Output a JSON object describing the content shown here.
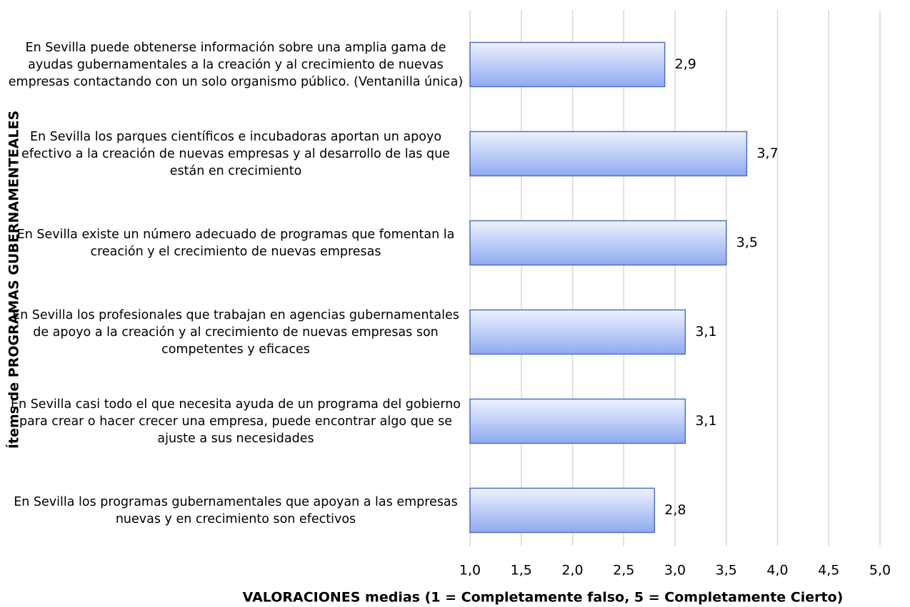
{
  "chart_data": {
    "type": "barh",
    "xlabel": "VALORACIONES medias (1 = Completamente falso, 5 = Completamente Cierto)",
    "ylabel": "Ítems de PROGRAMAS GUBERNAMENTEALES",
    "categories": [
      "En Sevilla puede obtenerse información sobre una amplia gama de ayudas gubernamentales a la creación y al crecimiento de nuevas empresas contactando con un solo organismo público. (Ventanilla única)",
      "En Sevilla los parques científicos e incubadoras aportan un apoyo efectivo a la creación de nuevas empresas y al desarrollo de las que están en crecimiento",
      "En Sevilla existe un número adecuado de programas que fomentan la creación y el crecimiento de nuevas empresas",
      "En Sevilla  los profesionales que trabajan en agencias gubernamentales de apoyo a la creación y al crecimiento de nuevas empresas son competentes y eficaces",
      "En Sevilla casi todo el que necesita ayuda de un programa del gobierno para crear o hacer crecer una empresa, puede encontrar algo que se ajuste a sus necesidades",
      "En Sevilla los programas gubernamentales que apoyan a las empresas nuevas y en crecimiento son efectivos"
    ],
    "values": [
      2.9,
      3.7,
      3.5,
      3.1,
      3.1,
      2.8
    ],
    "value_labels": [
      "2,9",
      "3,7",
      "3,5",
      "3,1",
      "3,1",
      "2,8"
    ],
    "color": "#8faaf0",
    "xlim": [
      1,
      5
    ],
    "xticks": [
      {
        "value": 1,
        "label": "1,0"
      },
      {
        "value": 1.5,
        "label": "1,5"
      },
      {
        "value": 2,
        "label": "2,0"
      },
      {
        "value": 2.5,
        "label": "2,5"
      },
      {
        "value": 3,
        "label": "3,0"
      },
      {
        "value": 3.5,
        "label": "3,5"
      },
      {
        "value": 4,
        "label": "4,0"
      },
      {
        "value": 4.5,
        "label": "4,5"
      },
      {
        "value": 5,
        "label": "5,0"
      }
    ],
    "grid": true
  }
}
